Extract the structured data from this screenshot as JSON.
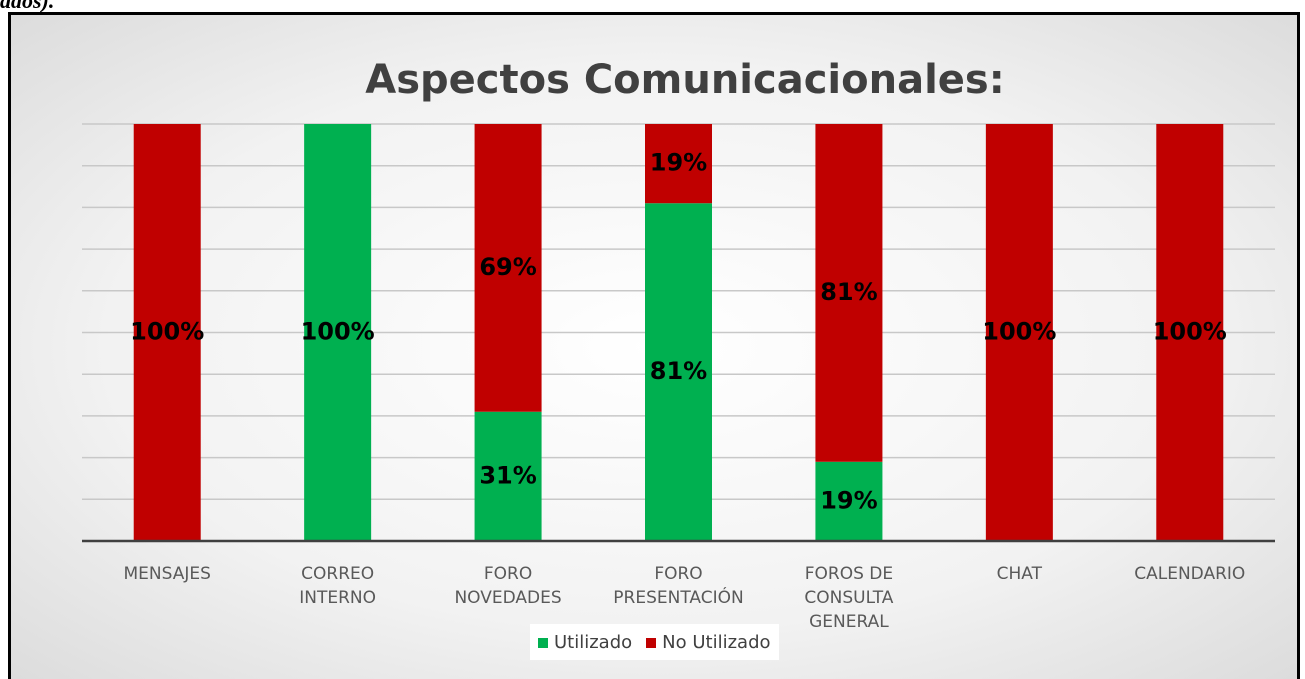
{
  "caption": "ados).",
  "chart_data": {
    "type": "stacked_bar",
    "title": "Aspectos Comunicacionales:",
    "categories": [
      "MENSAJES",
      "CORREO\nINTERNO",
      "FORO\nNOVEDADES",
      "FORO\nPRESENTACIÓN",
      "FOROS DE\nCONSULTA\nGENERAL",
      "CHAT",
      "CALENDARIO"
    ],
    "series": [
      {
        "name": "Utilizado",
        "color": "#00b050",
        "values": [
          0,
          100,
          31,
          81,
          19,
          0,
          0
        ],
        "value_labels": [
          null,
          "100%",
          "31%",
          "81%",
          "19%",
          null,
          null
        ]
      },
      {
        "name": "No Utilizado",
        "color": "#c00000",
        "values": [
          100,
          0,
          69,
          19,
          81,
          100,
          100
        ],
        "value_labels": [
          "100%",
          null,
          "69%",
          "19%",
          "81%",
          "100%",
          "100%"
        ]
      }
    ],
    "ylim": [
      0,
      100
    ],
    "yticks": [
      0,
      10,
      20,
      30,
      40,
      50,
      60,
      70,
      80,
      90,
      100
    ],
    "show_ytick_labels": false,
    "grid": true,
    "legend": "bottom"
  }
}
